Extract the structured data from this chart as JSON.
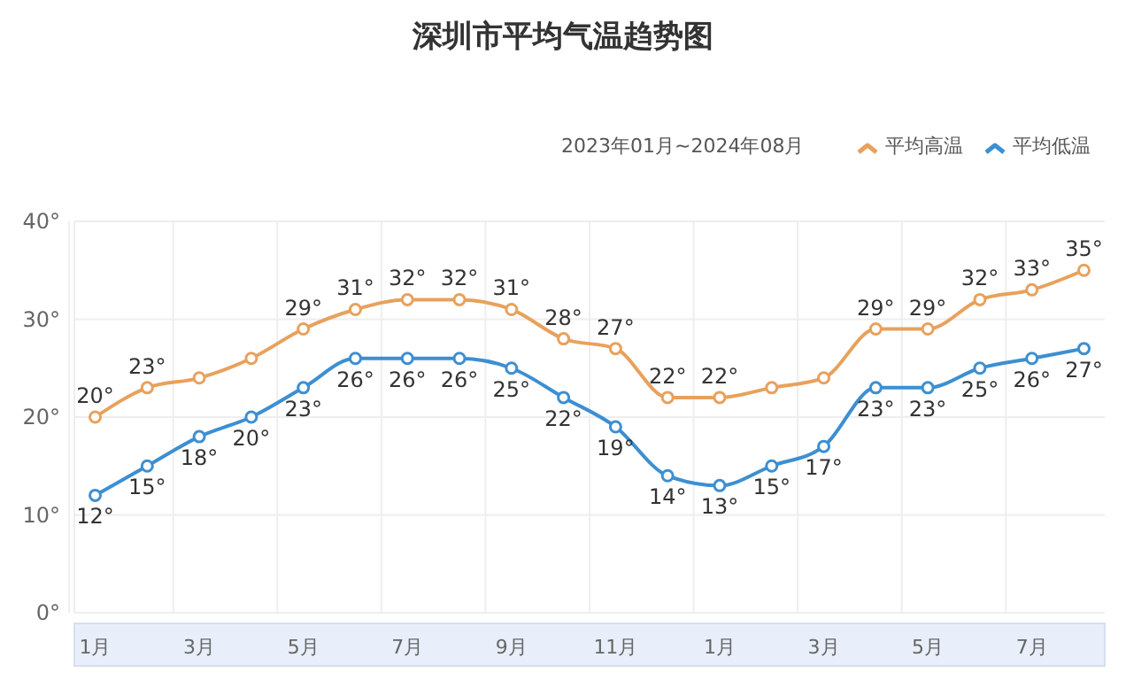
{
  "chart_data": {
    "type": "line",
    "title": "深圳市平均气温趋势图",
    "subtitle": "2023年01月~2024年08月",
    "categories": [
      "1月",
      null,
      "3月",
      null,
      "5月",
      null,
      "7月",
      null,
      "9月",
      null,
      "11月",
      null,
      "1月",
      null,
      "3月",
      null,
      "5月",
      null,
      "7月",
      null
    ],
    "series": [
      {
        "name": "平均高温",
        "color": "#e8a15c",
        "values": [
          20,
          23,
          24,
          26,
          29,
          31,
          32,
          32,
          31,
          28,
          27,
          22,
          22,
          23,
          24,
          29,
          29,
          32,
          33,
          35
        ],
        "value_labels": [
          "20°",
          "23°",
          null,
          null,
          "29°",
          "31°",
          "32°",
          "32°",
          "31°",
          "28°",
          "27°",
          "22°",
          "22°",
          null,
          null,
          "29°",
          "29°",
          "32°",
          "33°",
          "35°"
        ]
      },
      {
        "name": "平均低温",
        "color": "#3d8fd1",
        "values": [
          12,
          15,
          18,
          20,
          23,
          26,
          26,
          26,
          25,
          22,
          19,
          14,
          13,
          15,
          17,
          23,
          23,
          25,
          26,
          27
        ],
        "value_labels": [
          "12°",
          "15°",
          "18°",
          "20°",
          "23°",
          "26°",
          "26°",
          "26°",
          "25°",
          "22°",
          "19°",
          "14°",
          "13°",
          "15°",
          "17°",
          "23°",
          "23°",
          "25°",
          "26°",
          "27°"
        ]
      }
    ],
    "ylim": [
      0,
      40
    ],
    "yticks": [
      {
        "value": 0,
        "label": "0°"
      },
      {
        "value": 10,
        "label": "10°"
      },
      {
        "value": 20,
        "label": "20°"
      },
      {
        "value": 30,
        "label": "30°"
      },
      {
        "value": 40,
        "label": "40°"
      }
    ],
    "grid": true,
    "legend": "top right",
    "marker": "circle",
    "line_style": "solid"
  }
}
